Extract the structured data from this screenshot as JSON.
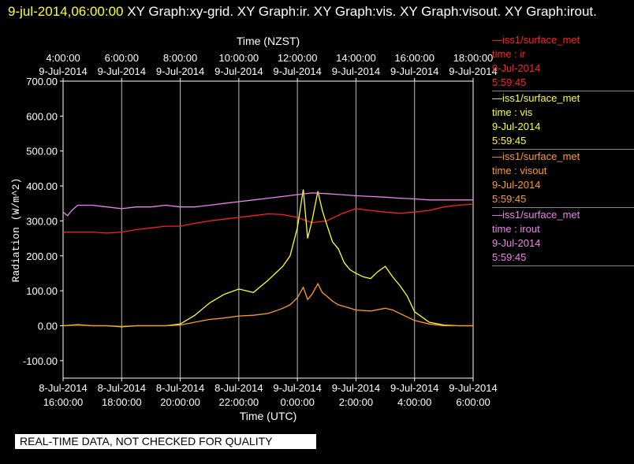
{
  "header": {
    "datetime": "9-jul-2014,06:00:00",
    "graphs": "XY Graph:xy-grid.  XY Graph:ir.  XY Graph:vis.  XY Graph:visout.  XY Graph:irout."
  },
  "legend": [
    {
      "line": "—iss1/surface_met",
      "field": "time : ir",
      "date": "9-Jul-2014",
      "time": "5:59:45",
      "color": "#ff2020"
    },
    {
      "line": "—iss1/surface_met",
      "field": "time : vis",
      "date": "9-Jul-2014",
      "time": "5:59:45",
      "color": "#ffff33"
    },
    {
      "line": "—iss1/surface_met",
      "field": "time : visout",
      "date": "9-Jul-2014",
      "time": "5:59:45",
      "color": "#ff9a2a"
    },
    {
      "line": "—iss1/surface_met",
      "field": "time : irout",
      "date": "9-Jul-2014",
      "time": "5:59:45",
      "color": "#ee82ee"
    }
  ],
  "footer": "REAL-TIME DATA, NOT CHECKED FOR QUALITY",
  "chart_data": {
    "type": "line",
    "title": "",
    "xlabel": "Time (UTC)",
    "x2label": "Time (NZST)",
    "ylabel": "Radiation (W/m^2)",
    "ylim": [
      -150,
      700
    ],
    "yticks": [
      "-100.00",
      "0.00",
      "100.00",
      "200.00",
      "300.00",
      "400.00",
      "500.00",
      "600.00",
      "700.00"
    ],
    "xlim_hours_utc": [
      16,
      30
    ],
    "bottom_ticks": [
      {
        "date": "8-Jul-2014",
        "time": "16:00:00"
      },
      {
        "date": "8-Jul-2014",
        "time": "18:00:00"
      },
      {
        "date": "8-Jul-2014",
        "time": "20:00:00"
      },
      {
        "date": "8-Jul-2014",
        "time": "22:00:00"
      },
      {
        "date": "9-Jul-2014",
        "time": "0:00:00"
      },
      {
        "date": "9-Jul-2014",
        "time": "2:00:00"
      },
      {
        "date": "9-Jul-2014",
        "time": "4:00:00"
      },
      {
        "date": "9-Jul-2014",
        "time": "6:00:00"
      }
    ],
    "top_ticks": [
      {
        "date": "9-Jul-2014",
        "time": "4:00:00"
      },
      {
        "date": "9-Jul-2014",
        "time": "6:00:00"
      },
      {
        "date": "9-Jul-2014",
        "time": "8:00:00"
      },
      {
        "date": "9-Jul-2014",
        "time": "10:00:00"
      },
      {
        "date": "9-Jul-2014",
        "time": "12:00:00"
      },
      {
        "date": "9-Jul-2014",
        "time": "14:00:00"
      },
      {
        "date": "9-Jul-2014",
        "time": "16:00:00"
      },
      {
        "date": "9-Jul-2014",
        "time": "18:00:00"
      }
    ],
    "grid": true,
    "series": [
      {
        "key": "ir",
        "color": "#ff2020",
        "x": [
          16,
          16.5,
          17,
          17.5,
          18,
          18.5,
          19,
          19.5,
          20,
          20.5,
          21,
          21.5,
          22,
          22.5,
          23,
          23.5,
          24,
          24.5,
          25,
          25.5,
          26,
          26.5,
          27,
          27.5,
          28,
          28.5,
          29,
          29.5,
          30
        ],
        "y": [
          268,
          268,
          268,
          265,
          268,
          275,
          280,
          285,
          285,
          293,
          300,
          305,
          310,
          315,
          320,
          318,
          310,
          295,
          300,
          320,
          335,
          330,
          325,
          322,
          325,
          330,
          340,
          345,
          348
        ]
      },
      {
        "key": "vis",
        "color": "#ffff33",
        "x": [
          16,
          16.5,
          17,
          17.5,
          18,
          18.5,
          19,
          19.5,
          20,
          20.5,
          21,
          21.5,
          22,
          22.5,
          23,
          23.25,
          23.5,
          23.75,
          24,
          24.2,
          24.35,
          24.5,
          24.7,
          24.85,
          25,
          25.2,
          25.4,
          25.6,
          25.8,
          26,
          26.25,
          26.5,
          26.75,
          27,
          27.25,
          27.5,
          27.75,
          28,
          28.5,
          29,
          29.5,
          30
        ],
        "y": [
          0,
          3,
          0,
          0,
          -3,
          0,
          0,
          0,
          5,
          30,
          65,
          90,
          105,
          95,
          130,
          150,
          170,
          200,
          280,
          390,
          250,
          300,
          385,
          330,
          290,
          240,
          220,
          180,
          160,
          150,
          140,
          135,
          155,
          170,
          140,
          115,
          85,
          40,
          10,
          2,
          0,
          0
        ]
      },
      {
        "key": "visout",
        "color": "#ff9a2a",
        "x": [
          16,
          16.5,
          17,
          17.5,
          18,
          18.5,
          19,
          19.5,
          20,
          20.5,
          21,
          21.5,
          22,
          22.5,
          23,
          23.25,
          23.5,
          23.75,
          24,
          24.2,
          24.35,
          24.5,
          24.7,
          24.85,
          25,
          25.2,
          25.4,
          25.6,
          25.8,
          26,
          26.5,
          27,
          27.25,
          27.5,
          27.75,
          28,
          28.5,
          29,
          29.5,
          30
        ],
        "y": [
          0,
          2,
          0,
          0,
          -2,
          0,
          0,
          0,
          2,
          10,
          18,
          22,
          28,
          30,
          35,
          42,
          50,
          60,
          80,
          110,
          75,
          90,
          120,
          95,
          85,
          70,
          60,
          55,
          50,
          45,
          42,
          50,
          45,
          35,
          25,
          15,
          5,
          0,
          0,
          0
        ]
      },
      {
        "key": "irout",
        "color": "#ee82ee",
        "x": [
          16,
          16.15,
          16.3,
          16.5,
          17,
          17.5,
          18,
          18.5,
          19,
          19.5,
          20,
          20.5,
          21,
          21.5,
          22,
          22.5,
          23,
          23.5,
          24,
          24.5,
          25,
          25.5,
          26,
          26.5,
          27,
          27.5,
          28,
          28.5,
          29,
          29.5,
          30
        ],
        "y": [
          325,
          315,
          330,
          345,
          345,
          340,
          335,
          340,
          340,
          345,
          340,
          340,
          345,
          350,
          355,
          360,
          365,
          370,
          375,
          380,
          378,
          375,
          372,
          370,
          368,
          365,
          363,
          360,
          360,
          360,
          360
        ]
      }
    ]
  }
}
